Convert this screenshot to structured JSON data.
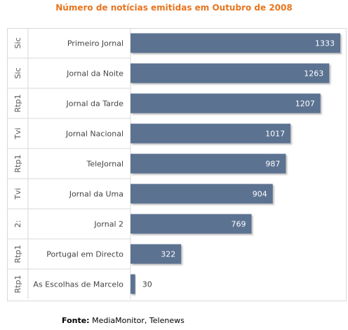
{
  "chart_data": {
    "type": "bar",
    "orientation": "horizontal",
    "title": "Número de notícias emitidas em Outubro de 2008",
    "categories": [
      "Primeiro Jornal",
      "Jornal da Noite",
      "Jornal da Tarde",
      "Jornal Nacional",
      "TeleJornal",
      "Jornal da Uma",
      "Jornal 2",
      "Portugal em Directo",
      "As Escolhas de Marcelo"
    ],
    "groups": [
      "Sic",
      "Sic",
      "Rtp1",
      "Tvi",
      "Rtp1",
      "Tvi",
      "2:",
      "Rtp1",
      "Rtp1"
    ],
    "values": [
      1333,
      1263,
      1207,
      1017,
      987,
      904,
      769,
      322,
      30
    ],
    "xlim": [
      0,
      1333
    ],
    "bar_color": "#5c7291",
    "grid": false,
    "legend": "none"
  },
  "source": {
    "label": "Fonte:",
    "text": "MediaMonitor, Telenews"
  },
  "colors": {
    "title": "#e8741e",
    "label_inside": "#ffffff",
    "label_outside": "#404040",
    "grid_lines": "#d9d9d9"
  }
}
